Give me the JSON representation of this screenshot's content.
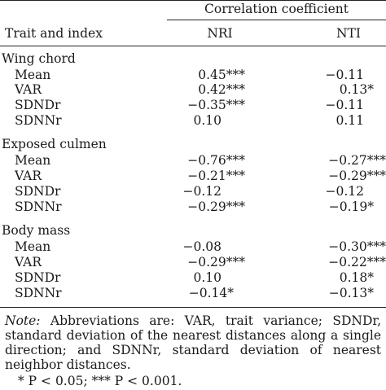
{
  "header": {
    "group_label": "Correlation coefficient",
    "col_trait": "Trait and index",
    "col_nri": "NRI",
    "col_nti": "NTI"
  },
  "sections": [
    {
      "title": "Wing chord",
      "rows": [
        {
          "index": "Mean",
          "nri": "0.45***",
          "nti": "−0.11"
        },
        {
          "index": "VAR",
          "nri": "0.42***",
          "nti": "0.13*"
        },
        {
          "index": "SDNDr",
          "nri": "−0.35***",
          "nti": "−0.11"
        },
        {
          "index": "SDNNr",
          "nri": "0.10",
          "nti": "0.11"
        }
      ]
    },
    {
      "title": "Exposed culmen",
      "rows": [
        {
          "index": "Mean",
          "nri": "−0.76***",
          "nti": "−0.27***"
        },
        {
          "index": "VAR",
          "nri": "−0.21***",
          "nti": "−0.29***"
        },
        {
          "index": "SDNDr",
          "nri": "−0.12",
          "nti": "−0.12"
        },
        {
          "index": "SDNNr",
          "nri": "−0.29***",
          "nti": "−0.19*"
        }
      ]
    },
    {
      "title": "Body mass",
      "rows": [
        {
          "index": "Mean",
          "nri": "−0.08",
          "nti": "−0.30***"
        },
        {
          "index": "VAR",
          "nri": "−0.29***",
          "nti": "−0.22***"
        },
        {
          "index": "SDNDr",
          "nri": "0.10",
          "nti": "0.18*"
        },
        {
          "index": "SDNNr",
          "nri": "−0.14*",
          "nti": "−0.13*"
        }
      ]
    }
  ],
  "footnote": {
    "note_label": "Note:",
    "note_text": " Abbreviations are: VAR, trait variance; SDNDr, standard deviation of the nearest distances along a single direction; and SDNNr, standard deviation of nearest neighbor distances.",
    "p_text": "* P < 0.05; *** P < 0.001."
  }
}
